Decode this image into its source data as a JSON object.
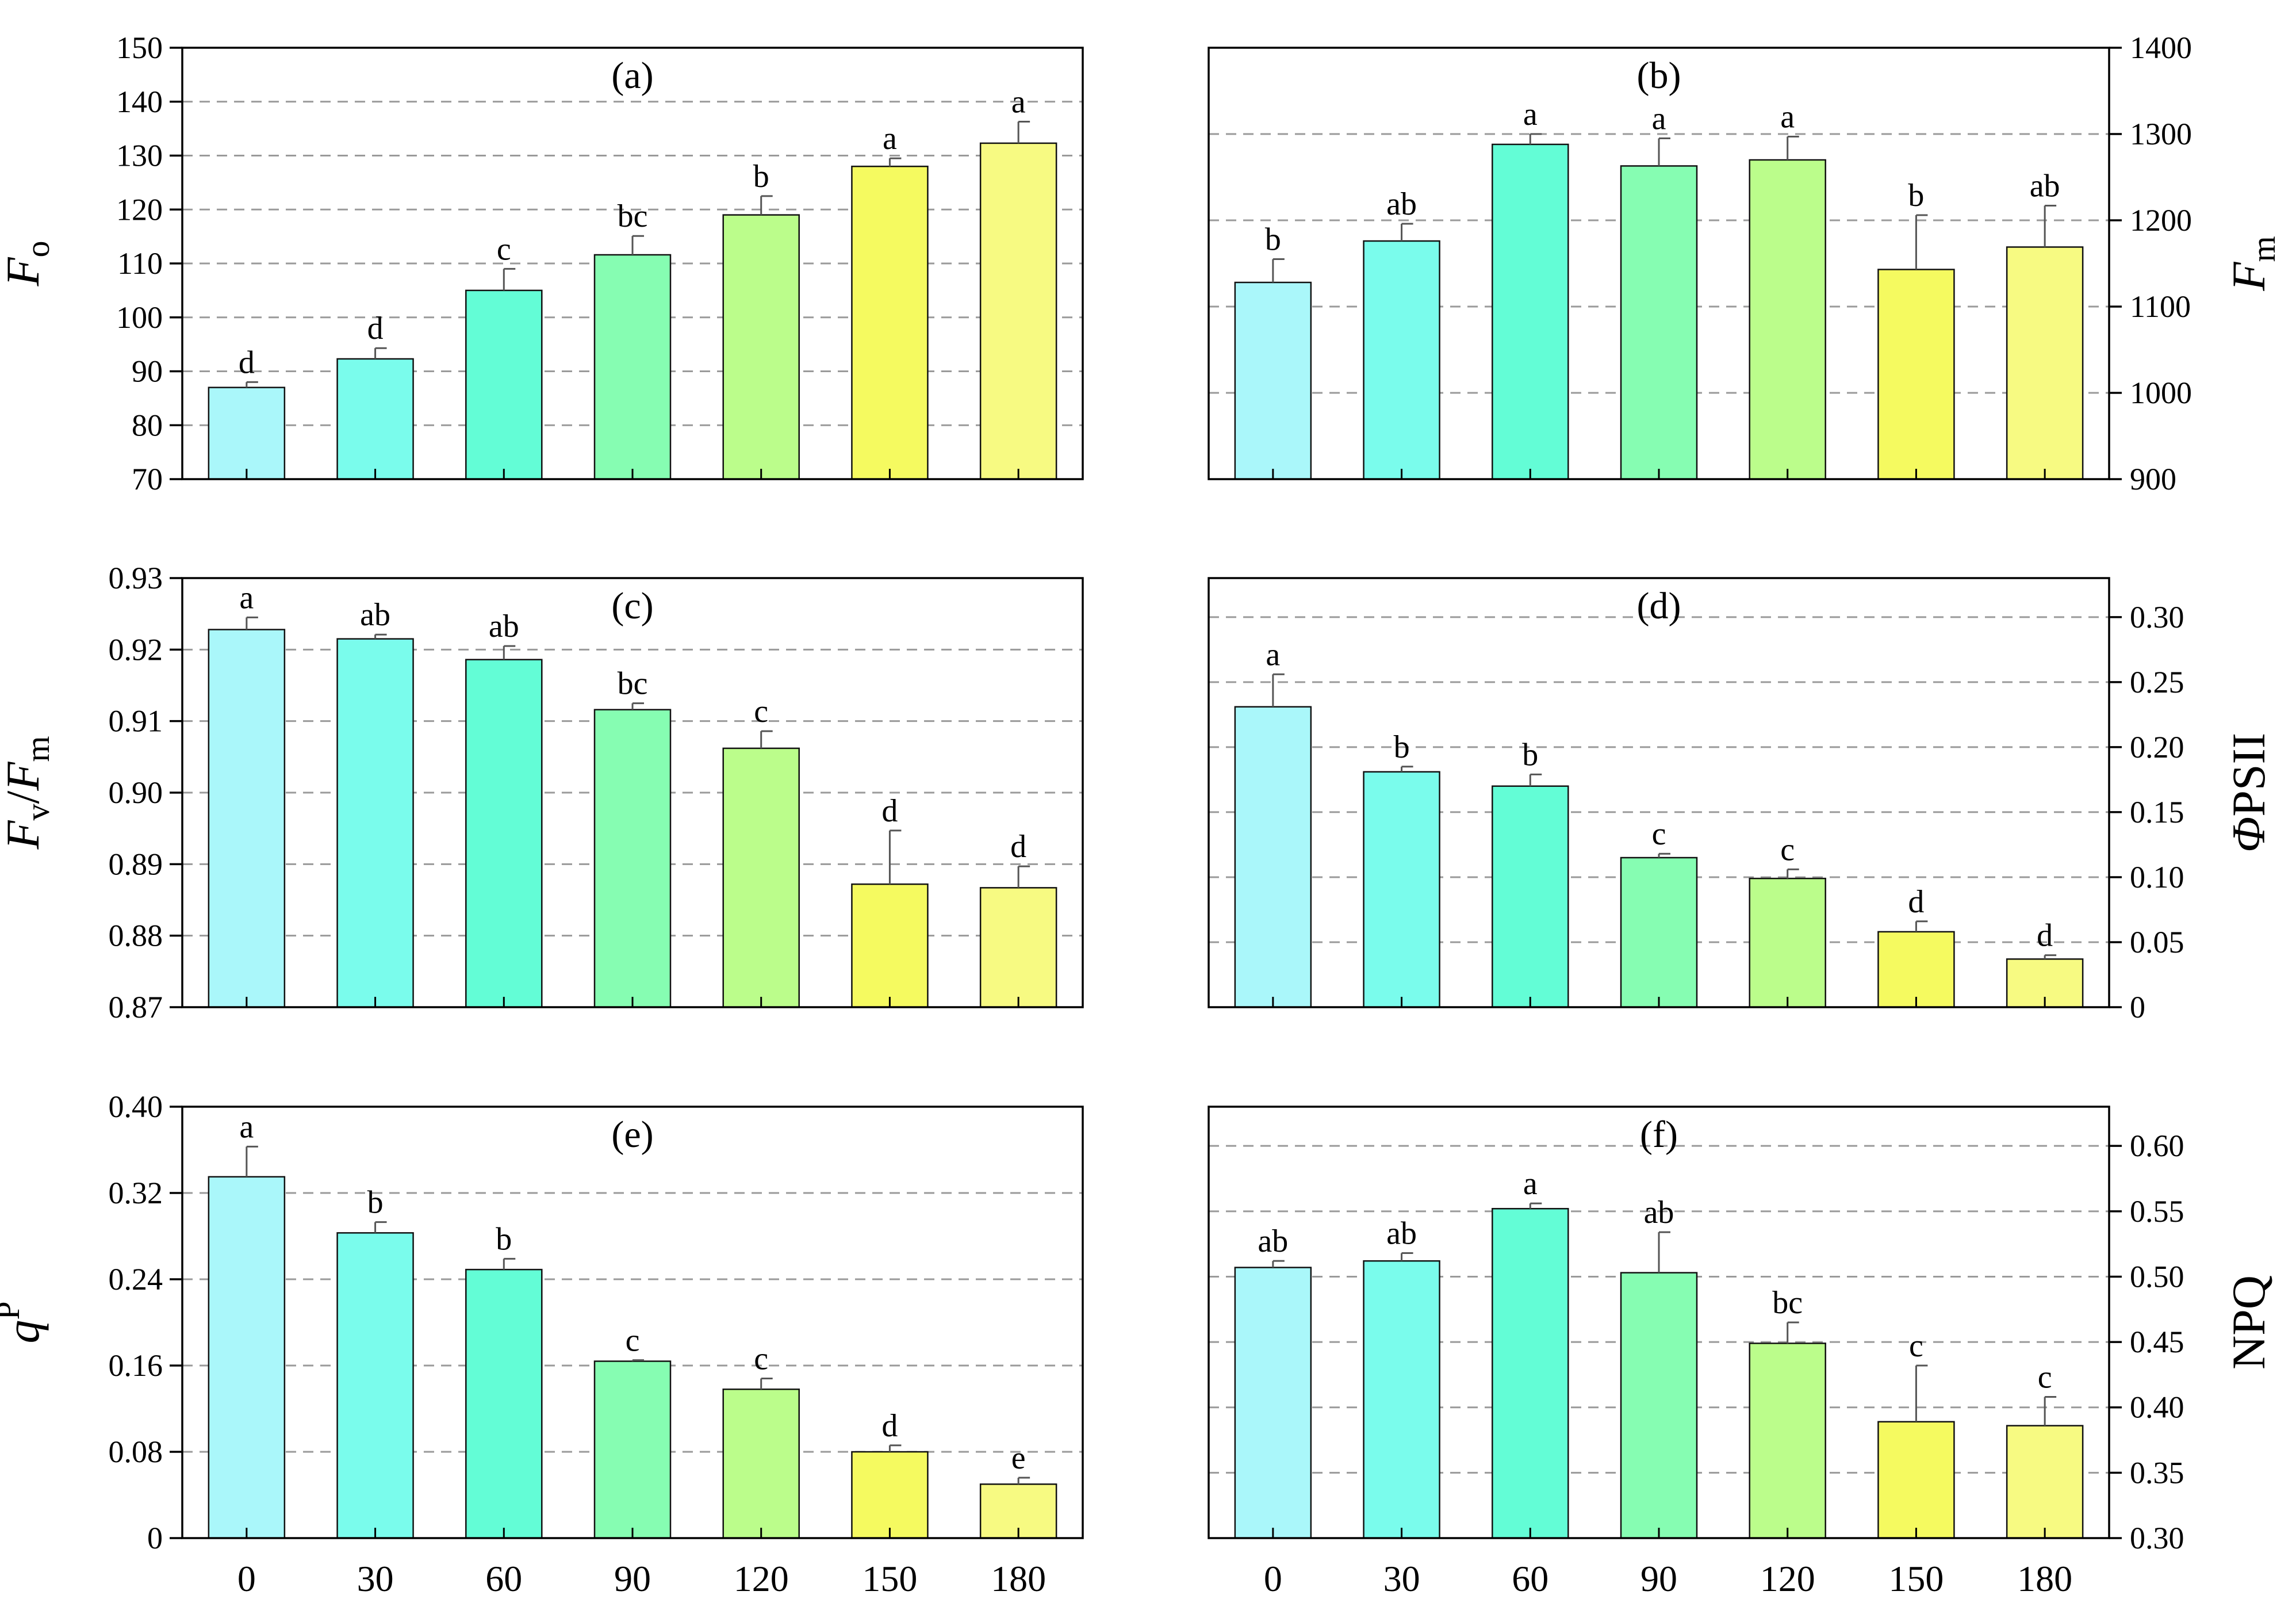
{
  "colors": {
    "bars": [
      "#aaf7fa",
      "#7afcec",
      "#63fdd6",
      "#86fdb2",
      "#bbfd8b",
      "#f5fa60",
      "#f7fa82"
    ],
    "grid": "#9a9a9a",
    "axis": "#000000",
    "error": "#555555"
  },
  "chart_data": [
    {
      "type": "bar",
      "panel_label": "(a)",
      "ylabel_main": "F",
      "ylabel_sub": "o",
      "ylabel_kind": "italic-sub",
      "axis_side": "left",
      "show_xticks": false,
      "categories": [
        "0",
        "30",
        "60",
        "90",
        "120",
        "150",
        "180"
      ],
      "values": [
        87.0,
        92.3,
        105.0,
        111.6,
        119.0,
        128.0,
        132.3
      ],
      "errors": [
        1.0,
        2.0,
        4.0,
        3.5,
        3.5,
        1.5,
        4.0
      ],
      "letters": [
        "d",
        "d",
        "c",
        "bc",
        "b",
        "a",
        "a"
      ],
      "ylim": [
        70,
        150
      ],
      "ticks": [
        70,
        80,
        90,
        100,
        110,
        120,
        130,
        140,
        150
      ],
      "tick_labels": [
        "70",
        "80",
        "90",
        "100",
        "110",
        "120",
        "130",
        "140",
        "150"
      ],
      "grid": [
        80,
        90,
        100,
        110,
        120,
        130,
        140
      ]
    },
    {
      "type": "bar",
      "panel_label": "(b)",
      "ylabel_main": "F",
      "ylabel_sub": "m",
      "ylabel_kind": "italic-sub",
      "axis_side": "right",
      "show_xticks": false,
      "categories": [
        "0",
        "30",
        "60",
        "90",
        "120",
        "150",
        "180"
      ],
      "values": [
        1128,
        1176,
        1288,
        1263,
        1270,
        1143,
        1169
      ],
      "errors": [
        27,
        20,
        12,
        32,
        27,
        63,
        48
      ],
      "letters": [
        "b",
        "ab",
        "a",
        "a",
        "a",
        "b",
        "ab"
      ],
      "ylim": [
        900,
        1400
      ],
      "ticks": [
        900,
        1000,
        1100,
        1200,
        1300,
        1400
      ],
      "tick_labels": [
        "900",
        "1000",
        "1100",
        "1200",
        "1300",
        "1400"
      ],
      "grid": [
        1000,
        1100,
        1200,
        1300
      ]
    },
    {
      "type": "bar",
      "panel_label": "(c)",
      "ylabel_main": "F",
      "ylabel_sub": "v",
      "ylabel_kind": "ratio",
      "ylabel_main2": "F",
      "ylabel_sub2": "m",
      "axis_side": "left",
      "show_xticks": false,
      "categories": [
        "0",
        "30",
        "60",
        "90",
        "120",
        "150",
        "180"
      ],
      "values": [
        0.9228,
        0.9215,
        0.9186,
        0.9116,
        0.9062,
        0.8872,
        0.8867
      ],
      "errors": [
        0.0017,
        0.0006,
        0.0019,
        0.0009,
        0.0024,
        0.0075,
        0.003
      ],
      "letters": [
        "a",
        "ab",
        "ab",
        "bc",
        "c",
        "d",
        "d"
      ],
      "ylim": [
        0.87,
        0.93
      ],
      "ticks": [
        0.87,
        0.88,
        0.89,
        0.9,
        0.91,
        0.92,
        0.93
      ],
      "tick_labels": [
        "0.87",
        "0.88",
        "0.89",
        "0.90",
        "0.91",
        "0.92",
        "0.93"
      ],
      "grid": [
        0.88,
        0.89,
        0.9,
        0.91,
        0.92
      ]
    },
    {
      "type": "bar",
      "panel_label": "(d)",
      "ylabel_main": "Φ",
      "ylabel_sub": "PSII",
      "ylabel_kind": "phi",
      "axis_side": "right",
      "show_xticks": false,
      "categories": [
        "0",
        "30",
        "60",
        "90",
        "120",
        "150",
        "180"
      ],
      "values": [
        0.231,
        0.181,
        0.17,
        0.115,
        0.099,
        0.058,
        0.037
      ],
      "errors": [
        0.025,
        0.004,
        0.009,
        0.003,
        0.007,
        0.008,
        0.003
      ],
      "letters": [
        "a",
        "b",
        "b",
        "c",
        "c",
        "d",
        "d"
      ],
      "ylim": [
        0,
        0.33
      ],
      "ticks": [
        0,
        0.05,
        0.1,
        0.15,
        0.2,
        0.25,
        0.3
      ],
      "tick_labels": [
        "0",
        "0.05",
        "0.10",
        "0.15",
        "0.20",
        "0.25",
        "0.30"
      ],
      "grid": [
        0.05,
        0.1,
        0.15,
        0.2,
        0.25,
        0.3
      ]
    },
    {
      "type": "bar",
      "panel_label": "(e)",
      "ylabel_main": "q",
      "ylabel_sub": "P",
      "ylabel_kind": "q-sup",
      "axis_side": "left",
      "show_xticks": true,
      "categories": [
        "0",
        "30",
        "60",
        "90",
        "120",
        "150",
        "180"
      ],
      "values": [
        0.335,
        0.283,
        0.249,
        0.164,
        0.138,
        0.08,
        0.05
      ],
      "errors": [
        0.028,
        0.01,
        0.01,
        0.001,
        0.01,
        0.006,
        0.006
      ],
      "letters": [
        "a",
        "b",
        "b",
        "c",
        "c",
        "d",
        "e"
      ],
      "ylim": [
        0,
        0.4
      ],
      "ticks": [
        0,
        0.08,
        0.16,
        0.24,
        0.32,
        0.4
      ],
      "tick_labels": [
        "0",
        "0.08",
        "0.16",
        "0.24",
        "0.32",
        "0.40"
      ],
      "grid": [
        0.08,
        0.16,
        0.24,
        0.32
      ]
    },
    {
      "type": "bar",
      "panel_label": "(f)",
      "ylabel_main": "NPQ",
      "ylabel_sub": "",
      "ylabel_kind": "plain",
      "axis_side": "right",
      "show_xticks": true,
      "categories": [
        "0",
        "30",
        "60",
        "90",
        "120",
        "150",
        "180"
      ],
      "values": [
        0.507,
        0.512,
        0.552,
        0.503,
        0.449,
        0.389,
        0.386
      ],
      "errors": [
        0.005,
        0.006,
        0.004,
        0.031,
        0.016,
        0.043,
        0.022
      ],
      "letters": [
        "ab",
        "ab",
        "a",
        "ab",
        "bc",
        "c",
        "c"
      ],
      "ylim": [
        0.3,
        0.63
      ],
      "ticks": [
        0.3,
        0.35,
        0.4,
        0.45,
        0.5,
        0.55,
        0.6
      ],
      "tick_labels": [
        "0.30",
        "0.35",
        "0.40",
        "0.45",
        "0.50",
        "0.55",
        "0.60"
      ],
      "grid": [
        0.35,
        0.4,
        0.45,
        0.5,
        0.55,
        0.6
      ]
    }
  ]
}
